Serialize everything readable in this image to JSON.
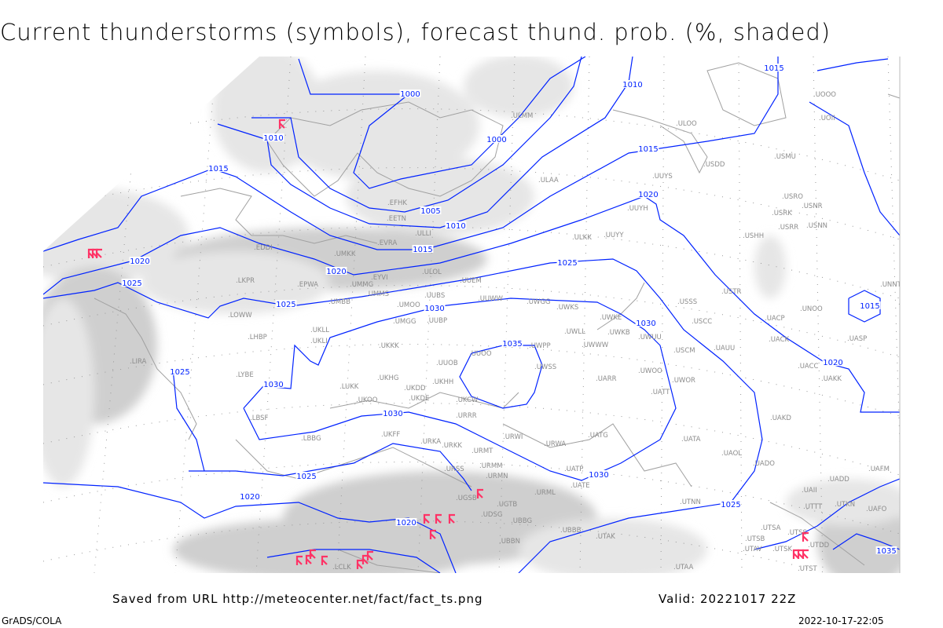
{
  "title": "Current thunderstorms (symbols), forecast thund. prob. (%, shaded)",
  "footer": {
    "saved_from": "Saved from URL http://meteocenter.net/fact/fact_ts.png",
    "valid": "Valid: 20221017 22Z",
    "software": "GrADS/COLA",
    "generated": "2022-10-17-22:05"
  },
  "colors": {
    "isobar": "#0022ff",
    "coastline": "#a0a0a0",
    "station_label": "#8c8c8c",
    "thunderstorm_symbol": "#ff3366",
    "shading_light": "#e6e6e6",
    "shading_dark": "#cfcfcf"
  },
  "map": {
    "projection": "polar stereographic",
    "grid": "dotted lat/lon",
    "isobar_labels": [
      "1000",
      "1000",
      "1005",
      "1010",
      "1010",
      "1010",
      "1015",
      "1015",
      "1015",
      "1015",
      "1015",
      "1020",
      "1020",
      "1020",
      "1020",
      "1020",
      "1020",
      "1025",
      "1025",
      "1025",
      "1025",
      "1025",
      "1025",
      "1030",
      "1030",
      "1030",
      "1030",
      "1030",
      "1035",
      "1035"
    ],
    "stations": [
      "ULMM",
      "ULAA",
      "ULOO",
      "USDD",
      "USMU",
      "UUYS",
      "UUYH",
      "ULKK",
      "UUYY",
      "USRO",
      "USRK",
      "USNR",
      "USRR",
      "USNN",
      "USHH",
      "UOOO",
      "UOII",
      "EFHK",
      "EETN",
      "ULLI",
      "EVRA",
      "ULOL",
      "UMKK",
      "EDDI",
      "EYVI",
      "LKPR",
      "EPWA",
      "UMMG",
      "UMBB",
      "UMMS",
      "UMOO",
      "UUBS",
      "UUEM",
      "UUWW",
      "UWGG",
      "UWKS",
      "UWKE",
      "UWKB",
      "UWUU",
      "UWLL",
      "UWWW",
      "UMGG",
      "UUBP",
      "UKLL",
      "UKLI",
      "LOWW",
      "LHBP",
      "UKKK",
      "UUOO",
      "UUOB",
      "UWPP",
      "UWSS",
      "UKHH",
      "UKDD",
      "UKHG",
      "UKDE",
      "UKCW",
      "UKOO",
      "LUKK",
      "LYBE",
      "LIRA",
      "LBSF",
      "LBBG",
      "URRR",
      "UKFF",
      "URKA",
      "URKK",
      "URWI",
      "URMT",
      "URSS",
      "URMM",
      "URMN",
      "UGSB",
      "UGTB",
      "UDSG",
      "UBBG",
      "UBBN",
      "URML",
      "UATG",
      "URWA",
      "UATP",
      "UATE",
      "UBBB",
      "UTAK",
      "UTAA",
      "UTNN",
      "USSS",
      "USCC",
      "USTR",
      "USCM",
      "UAUU",
      "UWOO",
      "UWOR",
      "UATT",
      "UARR",
      "UNOO",
      "UACP",
      "UACK",
      "UASP",
      "UACC",
      "UAKK",
      "UNNT",
      "UNBB",
      "UAKD",
      "UATA",
      "UAOL",
      "UADO",
      "UADD",
      "UAFM",
      "UAII",
      "UTKN",
      "UAFO",
      "UTTT",
      "UTSA",
      "UTSB",
      "UTSS",
      "UTAV",
      "UTSK",
      "UTDD",
      "UTST",
      "LCLK"
    ]
  }
}
